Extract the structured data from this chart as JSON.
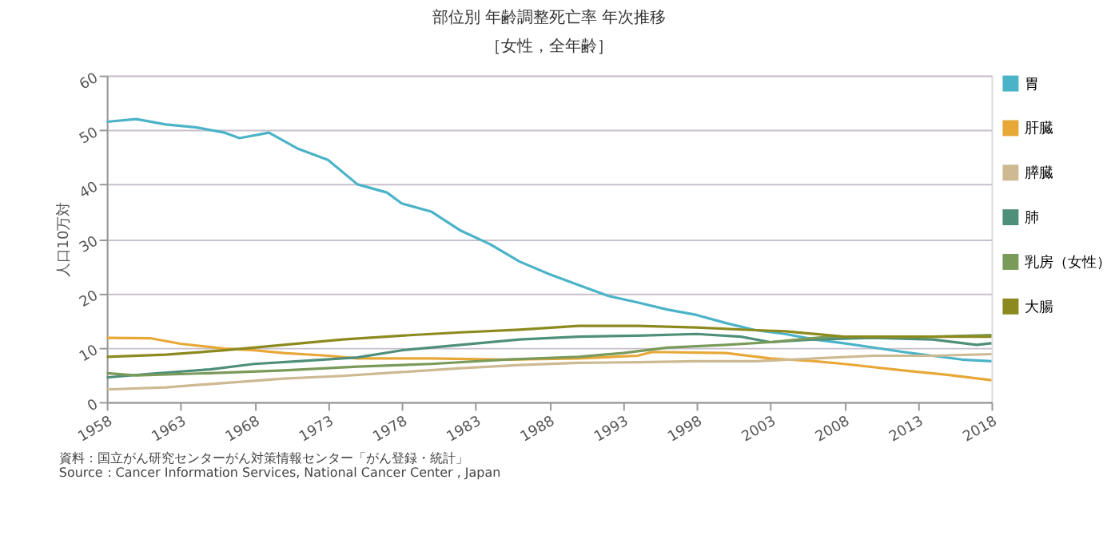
{
  "chart_data": {
    "type": "line",
    "title": "部位別 年齢調整死亡率 年次推移",
    "subtitle": "［女性，全年齢］",
    "ylabel": "人口10万対",
    "xlim": [
      1958,
      2018
    ],
    "xticks": [
      1958,
      1963,
      1968,
      1973,
      1978,
      1983,
      1988,
      1993,
      1998,
      2003,
      2008,
      2013,
      2018
    ],
    "ylim": [
      0,
      60
    ],
    "yticks": [
      0,
      10,
      20,
      30,
      40,
      50,
      60
    ],
    "grid": "y",
    "legend": "right",
    "marker": "none",
    "line_style": "solid",
    "annotations": [
      "資料：国立がん研究センターがん対策情報センター「がん登録・統計」",
      "Source：Cancer Information Services, National Cancer Center , Japan"
    ],
    "series": [
      {
        "name": "胃",
        "color": "#4bb3c8",
        "x": [
          1958,
          1960,
          1962,
          1964,
          1966,
          1967,
          1969,
          1971,
          1973,
          1975,
          1977,
          1978,
          1980,
          1982,
          1984,
          1986,
          1988,
          1990,
          1992,
          1994,
          1996,
          1998,
          2000,
          2002,
          2004,
          2006,
          2008,
          2010,
          2012,
          2014,
          2016,
          2018
        ],
        "values": [
          51.5,
          52,
          51,
          50.5,
          49.5,
          48.5,
          49.5,
          46.5,
          44.5,
          40,
          38.5,
          36.5,
          35,
          31.5,
          29,
          25.8,
          23.5,
          21.5,
          19.5,
          18.3,
          17,
          16,
          14.5,
          13.2,
          12.5,
          11.5,
          10.8,
          10,
          9.2,
          8.5,
          7.8,
          7.5
        ]
      },
      {
        "name": "肝臓",
        "color": "#e8a838",
        "x": [
          1958,
          1961,
          1963,
          1966,
          1968,
          1970,
          1973,
          1975,
          1980,
          1985,
          1990,
          1994,
          1995,
          2000,
          2003,
          2006,
          2008,
          2012,
          2015,
          2018
        ],
        "values": [
          11.8,
          11.7,
          10.7,
          9.8,
          9.5,
          9,
          8.5,
          8,
          8,
          7.8,
          8,
          8.5,
          9.2,
          9,
          8,
          7.5,
          7,
          5.8,
          5,
          4
        ]
      },
      {
        "name": "膵臓",
        "color": "#cdb992",
        "x": [
          1958,
          1962,
          1966,
          1970,
          1974,
          1978,
          1982,
          1986,
          1990,
          1994,
          1998,
          2002,
          2006,
          2010,
          2014,
          2018
        ],
        "values": [
          2.3,
          2.7,
          3.5,
          4.3,
          4.8,
          5.5,
          6.2,
          6.8,
          7.2,
          7.3,
          7.5,
          7.5,
          8,
          8.5,
          8.5,
          8.8
        ]
      },
      {
        "name": "肺",
        "color": "#4e8f7a",
        "x": [
          1958,
          1961,
          1965,
          1968,
          1971,
          1975,
          1978,
          1982,
          1986,
          1990,
          1994,
          1998,
          2001,
          2003,
          2006,
          2010,
          2014,
          2017,
          2018
        ],
        "values": [
          4.5,
          5.2,
          6,
          7,
          7.5,
          8.2,
          9.5,
          10.5,
          11.5,
          12,
          12.2,
          12.5,
          12,
          11,
          11.5,
          11.8,
          11.5,
          10.5,
          10.8
        ]
      },
      {
        "name": "乳房（女性）",
        "color": "#7a9a5a",
        "x": [
          1958,
          1960,
          1965,
          1970,
          1975,
          1980,
          1985,
          1990,
          1993,
          1996,
          2000,
          2003,
          2007,
          2010,
          2014,
          2018
        ],
        "values": [
          5.3,
          4.9,
          5.3,
          5.8,
          6.5,
          7,
          7.8,
          8.3,
          9,
          10,
          10.5,
          11,
          12,
          12,
          12,
          12.3
        ]
      },
      {
        "name": "大腸",
        "color": "#8c8a1e",
        "x": [
          1958,
          1962,
          1966,
          1970,
          1974,
          1978,
          1982,
          1986,
          1990,
          1994,
          1998,
          2002,
          2004,
          2008,
          2012,
          2018
        ],
        "values": [
          8.3,
          8.7,
          9.5,
          10.5,
          11.5,
          12.2,
          12.8,
          13.3,
          14,
          14,
          13.7,
          13.2,
          13,
          12,
          12,
          12
        ]
      }
    ]
  }
}
